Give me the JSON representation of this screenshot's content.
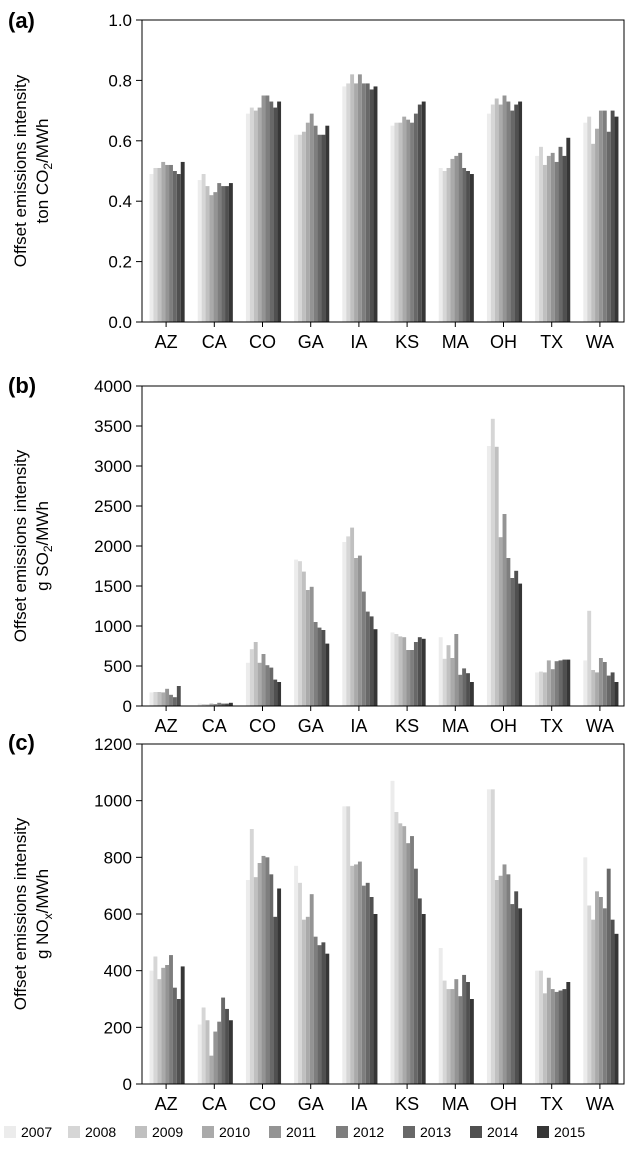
{
  "chart_data": [
    {
      "panel": "(a)",
      "type": "bar",
      "categories": [
        "AZ",
        "CA",
        "CO",
        "GA",
        "IA",
        "KS",
        "MA",
        "OH",
        "TX",
        "WA"
      ],
      "ylabel_line1": "Offset emissions intensity",
      "ylabel_pre": "ton CO",
      "ylabel_sub": "2",
      "ylabel_post": "/MWh",
      "ylim": [
        0,
        1.0
      ],
      "yticks": [
        "0.0",
        "0.2",
        "0.4",
        "0.6",
        "0.8",
        "1.0"
      ],
      "ytick_values": [
        0,
        0.2,
        0.4,
        0.6,
        0.8,
        1.0
      ],
      "values": [
        [
          0.49,
          0.51,
          0.51,
          0.53,
          0.52,
          0.52,
          0.5,
          0.49,
          0.53
        ],
        [
          0.47,
          0.49,
          0.45,
          0.42,
          0.43,
          0.46,
          0.45,
          0.45,
          0.46
        ],
        [
          0.69,
          0.71,
          0.7,
          0.71,
          0.75,
          0.75,
          0.73,
          0.71,
          0.73
        ],
        [
          0.62,
          0.62,
          0.63,
          0.66,
          0.69,
          0.65,
          0.62,
          0.62,
          0.65
        ],
        [
          0.78,
          0.79,
          0.82,
          0.79,
          0.82,
          0.79,
          0.79,
          0.77,
          0.78
        ],
        [
          0.65,
          0.66,
          0.66,
          0.68,
          0.67,
          0.66,
          0.69,
          0.72,
          0.73
        ],
        [
          0.51,
          0.5,
          0.51,
          0.54,
          0.55,
          0.56,
          0.51,
          0.5,
          0.49
        ],
        [
          0.69,
          0.72,
          0.74,
          0.72,
          0.75,
          0.73,
          0.7,
          0.72,
          0.73
        ],
        [
          0.55,
          0.58,
          0.52,
          0.55,
          0.56,
          0.53,
          0.58,
          0.55,
          0.61
        ],
        [
          0.66,
          0.68,
          0.59,
          0.64,
          0.7,
          0.7,
          0.63,
          0.7,
          0.68
        ]
      ]
    },
    {
      "panel": "(b)",
      "type": "bar",
      "categories": [
        "AZ",
        "CA",
        "CO",
        "GA",
        "IA",
        "KS",
        "MA",
        "OH",
        "TX",
        "WA"
      ],
      "ylabel_line1": "Offset emissions intensity",
      "ylabel_pre": "g SO",
      "ylabel_sub": "2",
      "ylabel_post": "/MWh",
      "ylim": [
        0,
        4000
      ],
      "yticks": [
        "0",
        "500",
        "1000",
        "1500",
        "2000",
        "2500",
        "3000",
        "3500",
        "4000"
      ],
      "ytick_values": [
        0,
        500,
        1000,
        1500,
        2000,
        2500,
        3000,
        3500,
        4000
      ],
      "values": [
        [
          170,
          175,
          175,
          170,
          215,
          140,
          110,
          250,
          0
        ],
        [
          30,
          25,
          20,
          30,
          25,
          40,
          30,
          30,
          40
        ],
        [
          540,
          710,
          800,
          540,
          650,
          510,
          480,
          330,
          300
        ],
        [
          1830,
          1810,
          1680,
          1450,
          1490,
          1050,
          980,
          950,
          780
        ],
        [
          2050,
          2120,
          2230,
          1850,
          1880,
          1430,
          1180,
          1120,
          960
        ],
        [
          920,
          900,
          870,
          860,
          700,
          700,
          800,
          860,
          840
        ],
        [
          860,
          590,
          760,
          600,
          900,
          390,
          470,
          410,
          300
        ],
        [
          3250,
          3590,
          3240,
          2110,
          2400,
          1850,
          1600,
          1690,
          1530
        ],
        [
          420,
          430,
          420,
          570,
          460,
          560,
          570,
          580,
          580
        ],
        [
          570,
          1190,
          450,
          420,
          600,
          550,
          380,
          420,
          300
        ]
      ]
    },
    {
      "panel": "(c)",
      "type": "bar",
      "categories": [
        "AZ",
        "CA",
        "CO",
        "GA",
        "IA",
        "KS",
        "MA",
        "OH",
        "TX",
        "WA"
      ],
      "ylabel_line1": "Offset emissions intensity",
      "ylabel_pre": "g NO",
      "ylabel_sub": "x",
      "ylabel_post": "/MWh",
      "ylim": [
        0,
        1200
      ],
      "yticks": [
        "0",
        "200",
        "400",
        "600",
        "800",
        "1000",
        "1200"
      ],
      "ytick_values": [
        0,
        200,
        400,
        600,
        800,
        1000,
        1200
      ],
      "values": [
        [
          400,
          450,
          370,
          410,
          420,
          455,
          340,
          300,
          415
        ],
        [
          210,
          270,
          225,
          100,
          185,
          220,
          305,
          265,
          225
        ],
        [
          720,
          900,
          730,
          780,
          805,
          800,
          740,
          590,
          690
        ],
        [
          770,
          710,
          580,
          590,
          670,
          520,
          490,
          500,
          460
        ],
        [
          980,
          980,
          770,
          775,
          785,
          700,
          710,
          660,
          600
        ],
        [
          1070,
          960,
          920,
          910,
          850,
          875,
          760,
          655,
          600
        ],
        [
          480,
          365,
          335,
          335,
          370,
          310,
          385,
          360,
          300
        ],
        [
          1040,
          1040,
          720,
          735,
          775,
          740,
          635,
          680,
          620
        ],
        [
          400,
          400,
          320,
          375,
          335,
          325,
          330,
          335,
          360
        ],
        [
          800,
          630,
          580,
          680,
          660,
          620,
          760,
          580,
          530
        ]
      ]
    }
  ],
  "legend": {
    "entries": [
      "2007",
      "2008",
      "2009",
      "2010",
      "2011",
      "2012",
      "2013",
      "2014",
      "2015"
    ],
    "colors": [
      "#ececec",
      "#d6d6d6",
      "#c0c0c0",
      "#aaaaaa",
      "#949494",
      "#7e7e7e",
      "#686868",
      "#505050",
      "#363636"
    ]
  }
}
